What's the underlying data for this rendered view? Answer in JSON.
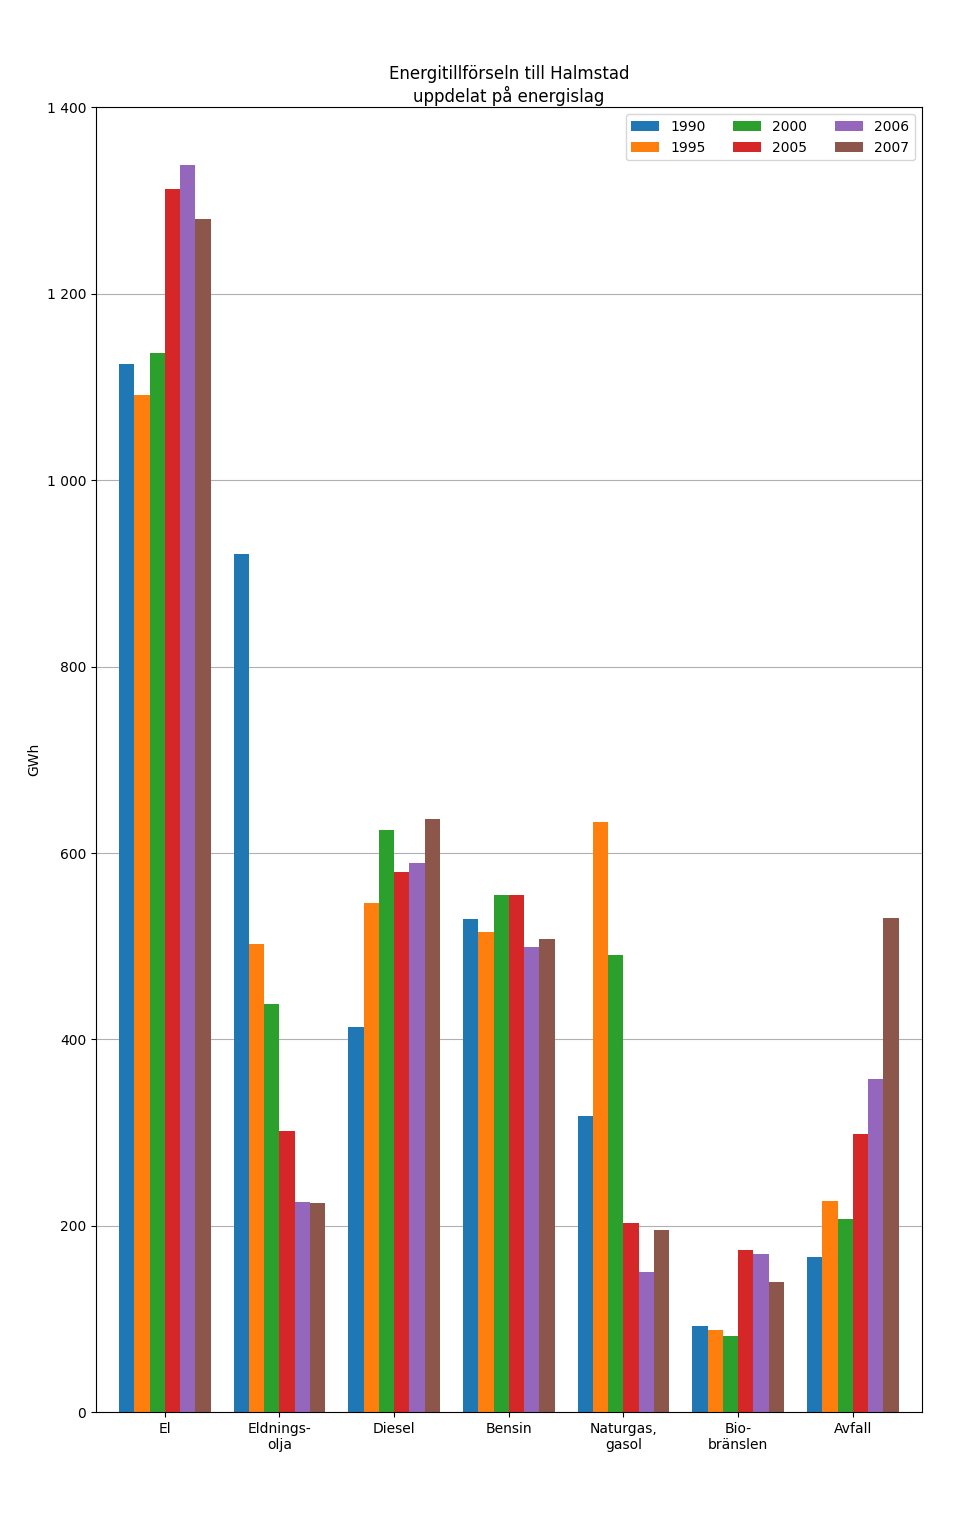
{
  "chart_data": {
    "type": "bar",
    "title": "Energitillförseln till Halmstad\nuppdelat på energislag",
    "y_label": "GWh",
    "categories": [
      "El",
      "Eldnings-\nolja",
      "Diesel",
      "Bensin",
      "Naturgas,\ngasol",
      "Bio-\nbränslen",
      "Avfall"
    ],
    "series": [
      {
        "name": "1990",
        "values": [
          1125,
          921,
          413,
          529,
          318,
          93,
          167
        ]
      },
      {
        "name": "1995",
        "values": [
          1091,
          502,
          546,
          515,
          633,
          88,
          227
        ]
      },
      {
        "name": "2000",
        "values": [
          1136,
          438,
          625,
          555,
          491,
          82,
          207
        ]
      },
      {
        "name": "2005",
        "values": [
          1312,
          302,
          580,
          555,
          203,
          174,
          298
        ]
      },
      {
        "name": "2006",
        "values": [
          1338,
          226,
          589,
          499,
          150,
          170,
          357
        ]
      },
      {
        "name": "2007",
        "values": [
          1280,
          225,
          636,
          508,
          196,
          140,
          530
        ]
      }
    ],
    "ylim": [
      0,
      1400
    ],
    "yticks": [
      0,
      200,
      400,
      600,
      800,
      {
        "value": 1000,
        "label": "1 000"
      },
      {
        "value": 1200,
        "label": "1 200"
      },
      {
        "value": 1400,
        "label": "1 400"
      }
    ],
    "grid": true,
    "legend": "upper right"
  }
}
